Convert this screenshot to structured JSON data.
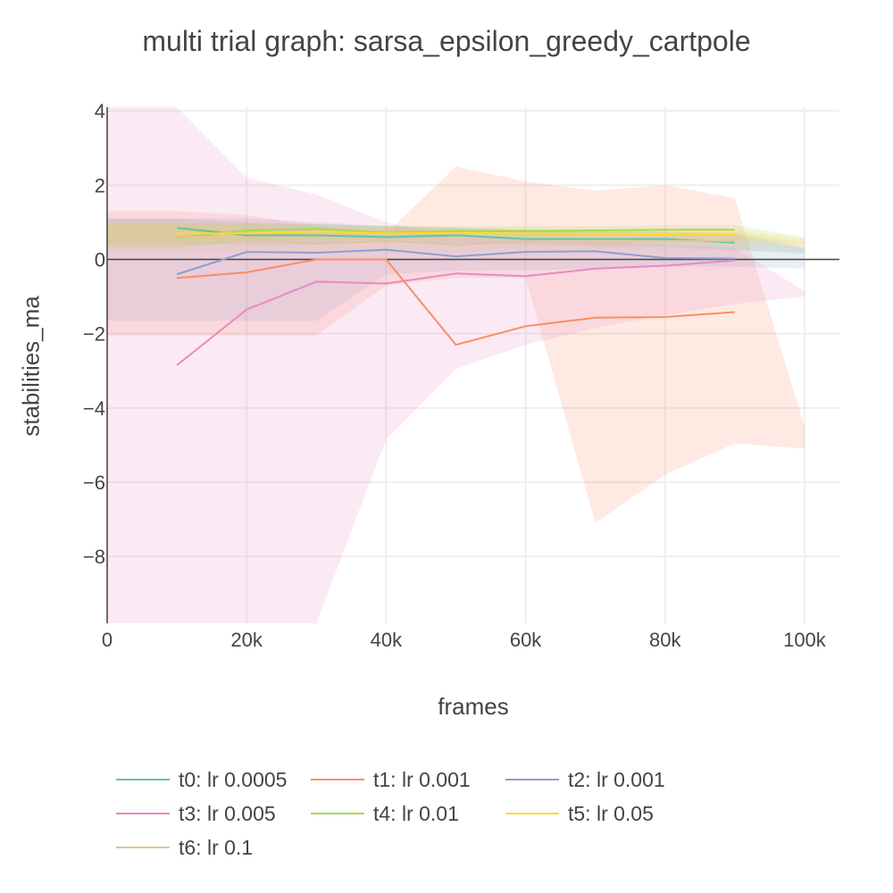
{
  "chart_data": {
    "type": "line",
    "title": "multi trial graph: sarsa_epsilon_greedy_cartpole",
    "xlabel": "frames",
    "ylabel": "stabilities_ma",
    "xlim": [
      0,
      105000
    ],
    "ylim": [
      -9.8,
      4.1
    ],
    "x_ticks": [
      0,
      20000,
      40000,
      60000,
      80000,
      100000
    ],
    "x_tick_labels": [
      "0",
      "20k",
      "40k",
      "60k",
      "80k",
      "100k"
    ],
    "y_ticks": [
      4,
      2,
      0,
      -2,
      -4,
      -6,
      -8
    ],
    "y_tick_labels": [
      "4",
      "2",
      "0",
      "−2",
      "−4",
      "−6",
      "−8"
    ],
    "grid": true,
    "legend_position": "bottom",
    "series": [
      {
        "name": "t0: lr 0.0005",
        "color": "#66c2a5",
        "x": [
          10000,
          20000,
          30000,
          40000,
          50000,
          60000,
          70000,
          80000,
          90000
        ],
        "y": [
          0.85,
          0.65,
          0.65,
          0.6,
          0.65,
          0.55,
          0.55,
          0.55,
          0.45
        ],
        "band_x": [
          0,
          10000,
          20000,
          30000,
          40000,
          50000,
          60000,
          70000,
          80000,
          90000,
          100000
        ],
        "band_upper": [
          1.1,
          1.1,
          1.0,
          0.95,
          0.9,
          0.85,
          0.8,
          0.8,
          0.75,
          0.7,
          0.35
        ],
        "band_lower": [
          0.4,
          0.4,
          0.4,
          0.4,
          0.45,
          0.45,
          0.4,
          0.35,
          0.35,
          0.25,
          0.15
        ]
      },
      {
        "name": "t1: lr 0.001",
        "color": "#fc8d62",
        "x": [
          10000,
          20000,
          30000,
          40000,
          50000,
          60000,
          70000,
          80000,
          90000
        ],
        "y": [
          -0.5,
          -0.35,
          0.0,
          0.0,
          -2.3,
          -1.8,
          -1.57,
          -1.55,
          -1.42
        ],
        "band_x": [
          0,
          10000,
          20000,
          30000,
          40000,
          50000,
          60000,
          70000,
          80000,
          90000,
          100000
        ],
        "band_upper": [
          1.3,
          1.3,
          1.2,
          0.9,
          0.7,
          2.5,
          2.1,
          1.85,
          2.0,
          1.65,
          -4.5
        ],
        "band_lower": [
          -2.05,
          -2.05,
          -2.05,
          -2.05,
          -0.7,
          -0.5,
          -0.5,
          -7.1,
          -5.8,
          -4.95,
          -5.1
        ]
      },
      {
        "name": "t2: lr 0.001",
        "color": "#8da0cb",
        "x": [
          10000,
          20000,
          30000,
          40000,
          50000,
          60000,
          70000,
          80000,
          90000
        ],
        "y": [
          -0.4,
          0.2,
          0.18,
          0.26,
          0.08,
          0.2,
          0.22,
          0.04,
          0.02
        ],
        "band_x": [
          0,
          10000,
          20000,
          30000,
          40000,
          50000,
          60000,
          70000,
          80000,
          90000,
          100000
        ],
        "band_upper": [
          1.1,
          1.1,
          1.1,
          1.0,
          0.9,
          0.85,
          0.8,
          0.75,
          0.7,
          0.65,
          0.3
        ],
        "band_lower": [
          -1.65,
          -1.65,
          -1.65,
          -1.65,
          -0.4,
          -0.3,
          -0.3,
          -0.25,
          -0.2,
          -0.2,
          -0.25
        ]
      },
      {
        "name": "t3: lr 0.005",
        "color": "#e78ac3",
        "x": [
          10000,
          20000,
          30000,
          40000,
          50000,
          60000,
          70000,
          80000,
          90000
        ],
        "y": [
          -2.85,
          -1.35,
          -0.6,
          -0.65,
          -0.38,
          -0.45,
          -0.25,
          -0.17,
          -0.03
        ],
        "band_x": [
          0,
          10000,
          20000,
          30000,
          40000,
          50000,
          60000,
          70000,
          80000,
          90000,
          100000
        ],
        "band_upper": [
          4.1,
          4.1,
          2.2,
          1.75,
          1.0,
          0.6,
          0.55,
          0.5,
          0.4,
          0.3,
          -0.85
        ],
        "band_lower": [
          -9.8,
          -9.8,
          -9.8,
          -9.8,
          -4.85,
          -2.95,
          -2.3,
          -1.85,
          -1.5,
          -1.2,
          -1.0
        ]
      },
      {
        "name": "t4: lr 0.01",
        "color": "#a6d854",
        "x": [
          10000,
          20000,
          30000,
          40000,
          50000,
          60000,
          70000,
          80000,
          90000
        ],
        "y": [
          0.58,
          0.78,
          0.82,
          0.72,
          0.76,
          0.76,
          0.78,
          0.8,
          0.8
        ],
        "band_x": [
          0,
          10000,
          20000,
          30000,
          40000,
          50000,
          60000,
          70000,
          80000,
          90000,
          100000
        ],
        "band_upper": [
          0.95,
          0.95,
          0.95,
          0.95,
          0.9,
          0.9,
          0.9,
          0.9,
          0.92,
          0.92,
          0.6
        ],
        "band_lower": [
          0.3,
          0.3,
          0.5,
          0.55,
          0.55,
          0.6,
          0.6,
          0.62,
          0.62,
          0.62,
          0.4
        ]
      },
      {
        "name": "t5: lr 0.05",
        "color": "#ffd92f",
        "x": [
          10000,
          20000,
          30000,
          40000,
          50000,
          60000,
          70000,
          80000,
          90000
        ],
        "y": [
          0.7,
          0.7,
          0.75,
          0.7,
          0.72,
          0.7,
          0.68,
          0.66,
          0.66
        ],
        "band_x": [
          0,
          10000,
          20000,
          30000,
          40000,
          50000,
          60000,
          70000,
          80000,
          90000,
          100000
        ],
        "band_upper": [
          0.95,
          0.95,
          0.9,
          0.85,
          0.85,
          0.82,
          0.8,
          0.8,
          0.8,
          0.8,
          0.55
        ],
        "band_lower": [
          0.45,
          0.45,
          0.5,
          0.55,
          0.55,
          0.55,
          0.55,
          0.5,
          0.5,
          0.5,
          0.35
        ]
      },
      {
        "name": "t6: lr 0.1",
        "color": "#e5c494",
        "x": [
          10000,
          20000,
          30000,
          40000,
          50000,
          60000,
          70000,
          80000,
          90000
        ],
        "y": [
          0.62,
          0.58,
          0.42,
          0.5,
          0.4,
          0.48,
          0.46,
          0.5,
          0.5
        ],
        "band_x": [
          0,
          10000,
          20000,
          30000,
          40000,
          50000,
          60000,
          70000,
          80000,
          90000,
          100000
        ],
        "band_upper": [
          1.05,
          1.05,
          0.95,
          0.9,
          0.85,
          0.8,
          0.78,
          0.75,
          0.75,
          0.72,
          0.45
        ],
        "band_lower": [
          0.2,
          0.2,
          0.2,
          0.15,
          0.2,
          0.2,
          0.2,
          0.25,
          0.25,
          0.25,
          0.2
        ]
      }
    ]
  }
}
